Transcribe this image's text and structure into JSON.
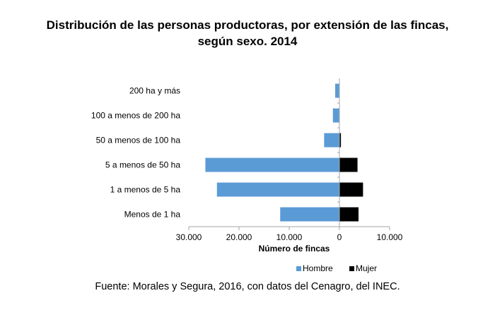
{
  "chart_data": {
    "type": "bar",
    "orientation": "horizontal",
    "layout": "population-pyramid",
    "title": "Distribución de las personas productoras, por extensión de las fincas, según sexo. 2014",
    "title_lines": [
      "Distribución de las personas productoras, por extensión de las fincas,",
      "según sexo. 2014"
    ],
    "xlabel": "Número de fincas",
    "ylabel": "",
    "xlim": [
      -30000,
      10000
    ],
    "x_ticks": [
      -30000,
      -20000,
      -10000,
      0,
      10000
    ],
    "x_tick_labels": [
      "30.000",
      "20.000",
      "10.000",
      "0",
      "10.000"
    ],
    "categories": [
      "200 ha y más",
      "100 a menos de 200 ha",
      "50 a menos de 100 ha",
      "5 a menos de 50 ha",
      "1 a menos de 5 ha",
      "Menos de 1 ha"
    ],
    "series": [
      {
        "name": "Hombre",
        "color": "#5b9bd5",
        "direction": "left",
        "values": [
          850,
          1300,
          3050,
          26700,
          24400,
          11800
        ]
      },
      {
        "name": "Mujer",
        "color": "#000000",
        "direction": "right",
        "values": [
          0,
          0,
          300,
          3600,
          4700,
          3800
        ]
      }
    ],
    "grid": false,
    "legend": "bottom-right"
  },
  "source": "Fuente: Morales y Segura, 2016, con datos del Cenagro, del INEC."
}
